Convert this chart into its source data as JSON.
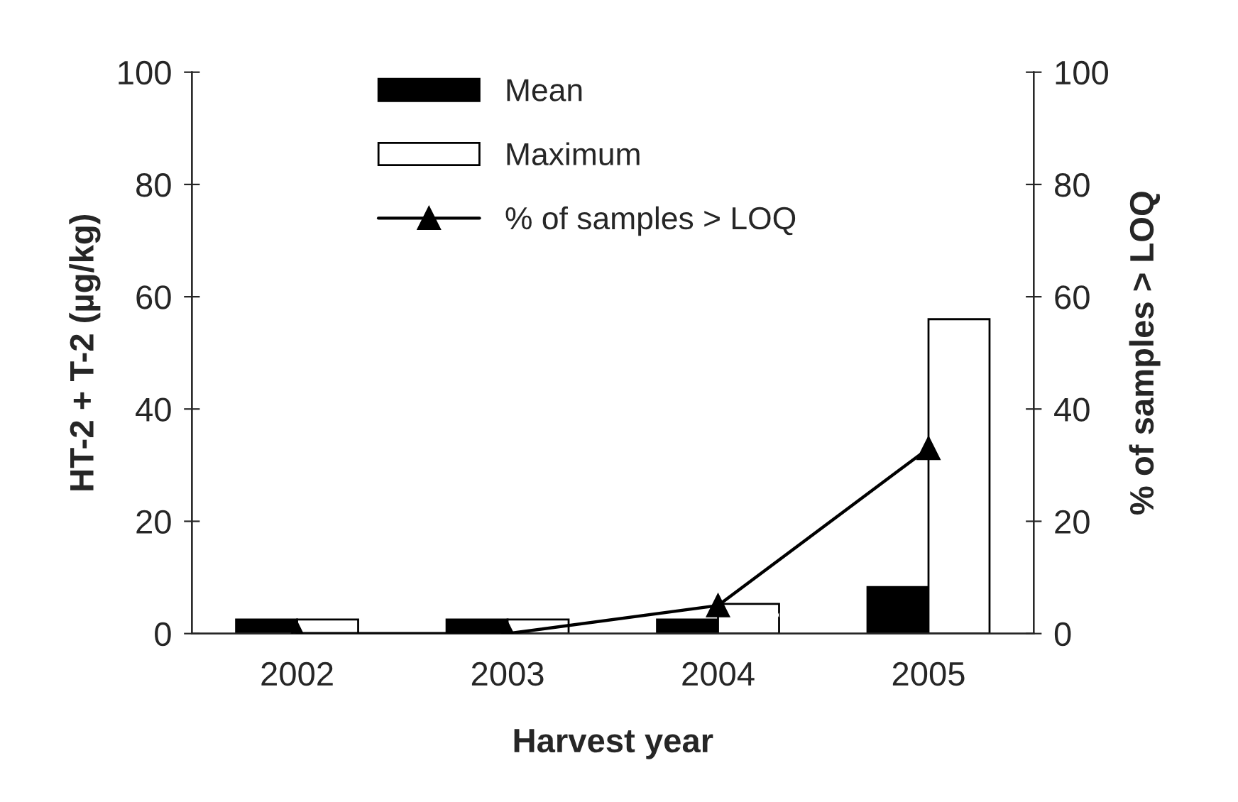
{
  "chart_data": {
    "type": "bar",
    "xlabel": "Harvest year",
    "ylabel": "HT-2 + T-2 (µg/kg)",
    "y2label": "% of samples > LOQ",
    "categories": [
      "2002",
      "2003",
      "2004",
      "2005"
    ],
    "series": [
      {
        "name": "Mean",
        "color": "#000000",
        "values": [
          2.5,
          2.5,
          2.5,
          8.3
        ]
      },
      {
        "name": "Maximum",
        "color": "#ffffff",
        "values": [
          2.5,
          2.5,
          5.3,
          56
        ]
      },
      {
        "name": "% of samples > LOQ",
        "type": "line",
        "axis": "y2",
        "color": "#000000",
        "marker": "triangle",
        "values": [
          0,
          0,
          5,
          33
        ]
      }
    ],
    "ylim": [
      0,
      100
    ],
    "yticks": [
      0,
      20,
      40,
      60,
      80,
      100
    ],
    "y2lim": [
      0,
      100
    ],
    "y2ticks": [
      0,
      20,
      40,
      60,
      80,
      100
    ],
    "legend": "top",
    "grid": false
  }
}
